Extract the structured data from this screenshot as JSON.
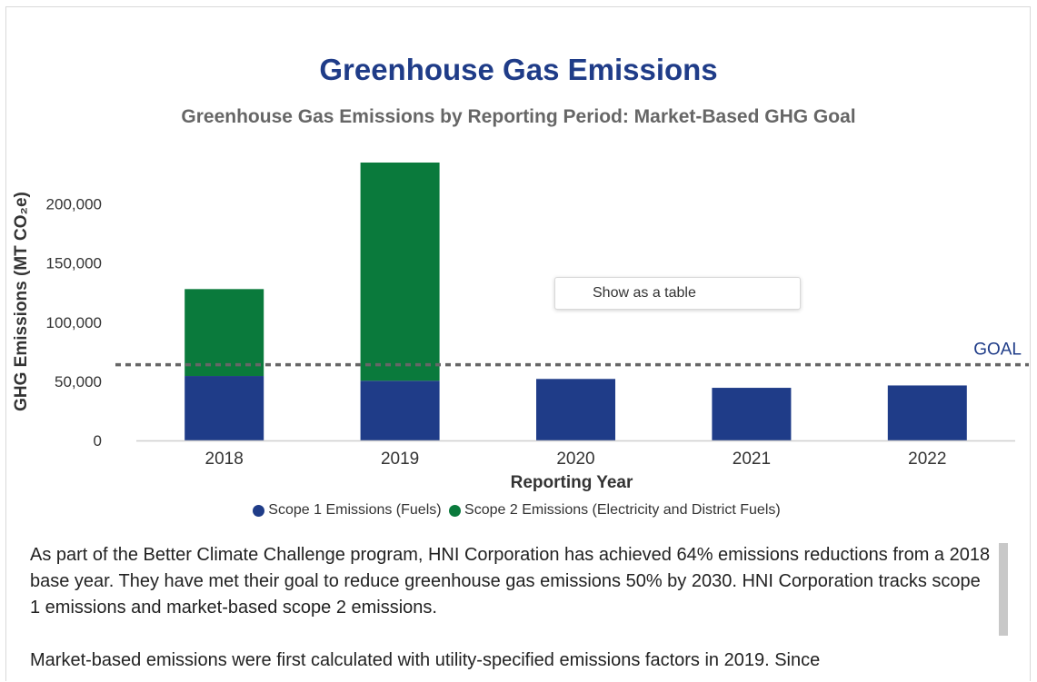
{
  "chart_data": {
    "type": "bar",
    "stacked": true,
    "title": "Greenhouse Gas Emissions",
    "subtitle": "Greenhouse Gas Emissions by Reporting Period: Market-Based GHG Goal",
    "xlabel": "Reporting Year",
    "ylabel": "GHG Emissions (MT CO₂e)",
    "categories": [
      "2018",
      "2019",
      "2020",
      "2021",
      "2022"
    ],
    "series": [
      {
        "name": "Scope 1 Emissions (Fuels)",
        "color": "#1f3c88",
        "values": [
          54500,
          50500,
          52000,
          44500,
          46500
        ]
      },
      {
        "name": "Scope 2 Emissions (Electricity and District Fuels)",
        "color": "#0a7a3c",
        "values": [
          73500,
          184500,
          0,
          0,
          0
        ]
      }
    ],
    "yticks": [
      0,
      50000,
      100000,
      150000,
      200000
    ],
    "ytick_labels": [
      "0",
      "50,000",
      "100,000",
      "150,000",
      "200,000"
    ],
    "ylim": [
      0,
      235000
    ],
    "goal": {
      "label": "GOAL",
      "value": 64000,
      "color": "#666666"
    },
    "legend_position": "bottom",
    "grid": false
  },
  "ui": {
    "table_button": "Show as a table"
  },
  "text": {
    "paragraph_1": "As part of the Better Climate Challenge program, HNI Corporation has achieved 64% emissions reductions from a 2018 base year. They have met their goal to reduce greenhouse gas emissions 50% by 2030. HNI Corporation tracks scope 1 emissions and market-based scope 2 emissions.",
    "paragraph_2": "Market-based emissions were first calculated with utility-specified emissions factors in 2019. Since"
  }
}
